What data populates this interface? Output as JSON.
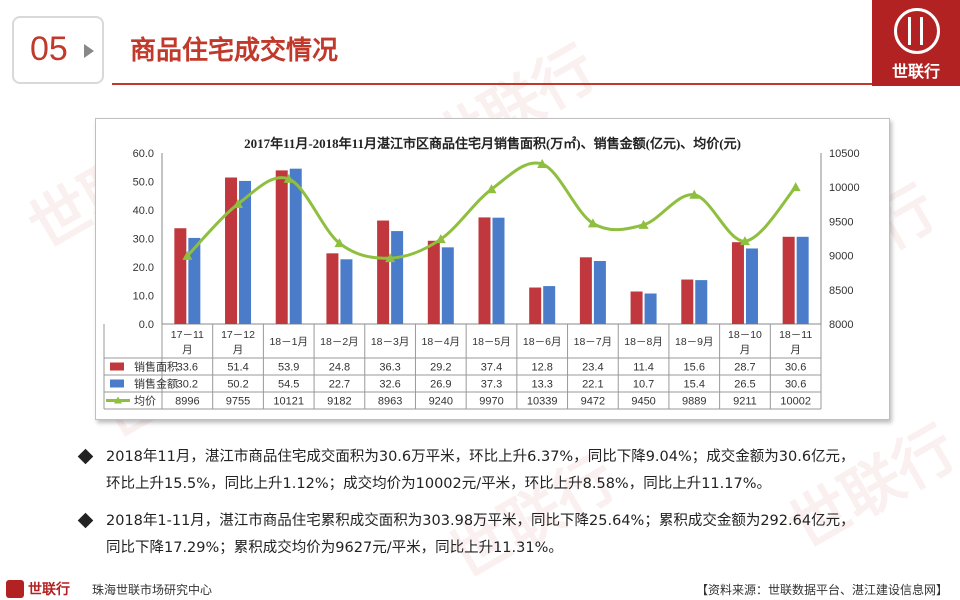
{
  "section": {
    "number": "05",
    "title": "商品住宅成交情况"
  },
  "brand": {
    "name": "世联行"
  },
  "watermark": "世联行",
  "chart_data": {
    "type": "bar",
    "title": "2017年11月-2018年11月湛江市区商品住宅月销售面积(万㎡)、销售金额(亿元)、均价(元)",
    "categories": [
      [
        "17－11",
        "月"
      ],
      [
        "17－12",
        "月"
      ],
      [
        "18－1月"
      ],
      [
        "18－2月"
      ],
      [
        "18－3月"
      ],
      [
        "18－4月"
      ],
      [
        "18－5月"
      ],
      [
        "18－6月"
      ],
      [
        "18－7月"
      ],
      [
        "18－8月"
      ],
      [
        "18－9月"
      ],
      [
        "18－10",
        "月"
      ],
      [
        "18－11",
        "月"
      ]
    ],
    "series": [
      {
        "name": "销售面积",
        "type": "bar",
        "axis": "left",
        "color": "#c0383d",
        "values": [
          33.6,
          51.4,
          53.9,
          24.8,
          36.3,
          29.2,
          37.4,
          12.8,
          23.4,
          11.4,
          15.6,
          28.7,
          30.6
        ],
        "labels": [
          "33.6",
          "51.4",
          "53.9",
          "24.8",
          "36.3",
          "29.2",
          "37.4",
          "12.8",
          "23.4",
          "11.4",
          "15.6",
          "28.7",
          "30.6"
        ]
      },
      {
        "name": "销售金额",
        "type": "bar",
        "axis": "left",
        "color": "#4a7cc9",
        "values": [
          30.2,
          50.2,
          54.5,
          22.7,
          32.6,
          26.9,
          37.3,
          13.3,
          22.1,
          10.7,
          15.4,
          26.5,
          30.6
        ],
        "labels": [
          "30.2",
          "50.2",
          "54.5",
          "22.7",
          "32.6",
          "26.9",
          "37.3",
          "13.3",
          "22.1",
          "10.7",
          "15.4",
          "26.5",
          "30.6"
        ]
      },
      {
        "name": "均价",
        "type": "line",
        "axis": "right",
        "color": "#8fbf3f",
        "values": [
          8996,
          9755,
          10121,
          9182,
          8963,
          9240,
          9970,
          10339,
          9472,
          9450,
          9889,
          9211,
          10002
        ],
        "labels": [
          "8996",
          "9755",
          "10121",
          "9182",
          "8963",
          "9240",
          "9970",
          "10339",
          "9472",
          "9450",
          "9889",
          "9211",
          "10002"
        ]
      }
    ],
    "ylim": [
      0,
      60
    ],
    "y2lim": [
      8000,
      10500
    ],
    "yticks": [
      "60.0",
      "50.0",
      "40.0",
      "30.0",
      "20.0",
      "10.0",
      "0.0"
    ],
    "y2ticks": [
      "10500",
      "10000",
      "9500",
      "9000",
      "8500",
      "8000"
    ],
    "grid": false,
    "legend": "data-table-below"
  },
  "bullets": [
    {
      "line1": "2018年11月，湛江市商品住宅成交面积为30.6万平米，环比上升6.37%，同比下降9.04%；成交金额为30.6亿元，",
      "line2": "环比上升15.5%，同比上升1.12%；成交均价为10002元/平米，环比上升8.58%，同比上升11.17%。"
    },
    {
      "line1": "2018年1-11月，湛江市商品住宅累积成交面积为303.98万平米，同比下降25.64%；累积成交金额为292.64亿元，",
      "line2": "同比下降17.29%；累积成交均价为9627元/平米，同比上升11.31%。"
    }
  ],
  "footer": {
    "brand": "世联行",
    "center": "珠海世联市场研究中心",
    "source": "【资料来源：世联数据平台、湛江建设信息网】"
  }
}
